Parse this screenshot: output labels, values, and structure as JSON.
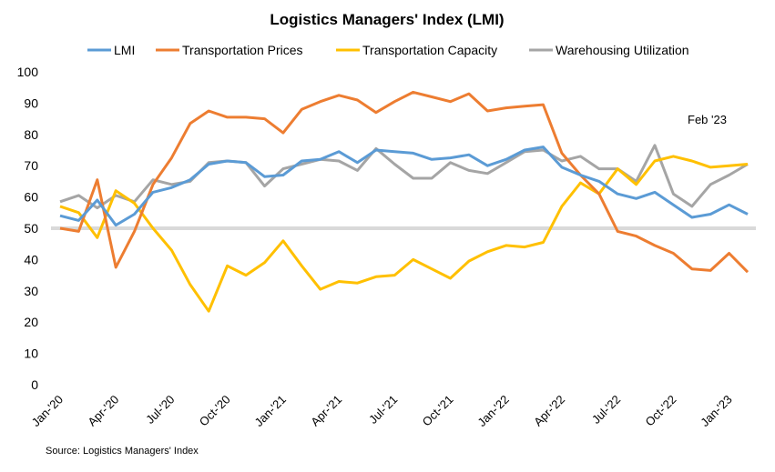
{
  "chart_data": {
    "type": "line",
    "title": "Logistics Managers' Index (LMI)",
    "source": "Source: Logistics Managers' Index",
    "annotation": "Feb '23",
    "ylim": [
      0,
      100
    ],
    "yticks": [
      0,
      10,
      20,
      30,
      40,
      50,
      60,
      70,
      80,
      90,
      100
    ],
    "reference_line": {
      "y": 50,
      "color": "#d9d9d9"
    },
    "legend_position": "top",
    "grid": false,
    "x": [
      "Jan-20",
      "Feb-20",
      "Mar-20",
      "Apr-20",
      "May-20",
      "Jun-20",
      "Jul-20",
      "Aug-20",
      "Sep-20",
      "Oct-20",
      "Nov-20",
      "Dec-20",
      "Jan-21",
      "Feb-21",
      "Mar-21",
      "Apr-21",
      "May-21",
      "Jun-21",
      "Jul-21",
      "Aug-21",
      "Sep-21",
      "Oct-21",
      "Nov-21",
      "Dec-21",
      "Jan-22",
      "Feb-22",
      "Mar-22",
      "Apr-22",
      "May-22",
      "Jun-22",
      "Jul-22",
      "Aug-22",
      "Sep-22",
      "Oct-22",
      "Nov-22",
      "Dec-22",
      "Jan-23",
      "Feb-23"
    ],
    "xtick_labels": [
      "Jan-'20",
      "Apr-'20",
      "Jul-'20",
      "Oct-'20",
      "Jan-'21",
      "Apr-'21",
      "Jul-'21",
      "Oct-'21",
      "Jan-'22",
      "Apr-'22",
      "Jul-'22",
      "Oct-'22",
      "Jan-'23"
    ],
    "series": [
      {
        "name": "LMI",
        "color": "#5b9bd5",
        "values": [
          54,
          52.5,
          59,
          51,
          54.5,
          61.5,
          63,
          65.5,
          70.5,
          71.5,
          71,
          66.5,
          67,
          71.5,
          72,
          74.5,
          71,
          75,
          74.5,
          74,
          72,
          72.5,
          73.5,
          70,
          72,
          75,
          76,
          69.5,
          67,
          65,
          61,
          59.5,
          61.5,
          57.5,
          53.5,
          54.5,
          57.5,
          54.5
        ]
      },
      {
        "name": "Transportation Prices",
        "color": "#ed7d31",
        "values": [
          50,
          49,
          65.5,
          37.5,
          49,
          64,
          72.5,
          83.5,
          87.5,
          85.5,
          85.5,
          85,
          80.5,
          88,
          90.5,
          92.5,
          91,
          87,
          90.5,
          93.5,
          92,
          90.5,
          93,
          87.5,
          88.5,
          89,
          89.5,
          74,
          67,
          61,
          49,
          47.5,
          44.5,
          42,
          37,
          36.5,
          42,
          36
        ]
      },
      {
        "name": "Transportation Capacity",
        "color": "#ffc000",
        "values": [
          57,
          55,
          47,
          62,
          58,
          50,
          43,
          32,
          23.5,
          38,
          35,
          39,
          46,
          38,
          30.5,
          33,
          32.5,
          34.5,
          35,
          40,
          37,
          34,
          39.5,
          42.5,
          44.5,
          44,
          45.5,
          57,
          64.5,
          61,
          69,
          64,
          71.5,
          73,
          71.5,
          69.5,
          70,
          70.5
        ]
      },
      {
        "name": "Warehousing Utilization",
        "color": "#a5a5a5",
        "values": [
          58.5,
          60.5,
          56.5,
          60.5,
          58.5,
          65.5,
          64,
          65,
          71,
          71.5,
          71,
          63.5,
          69,
          70.5,
          72,
          71.5,
          68.5,
          75.5,
          70.5,
          66,
          66,
          71,
          68.5,
          67.5,
          71,
          74.5,
          75,
          71.5,
          73,
          69,
          69,
          65,
          76.5,
          61,
          57,
          64,
          67,
          70.5
        ]
      }
    ]
  }
}
